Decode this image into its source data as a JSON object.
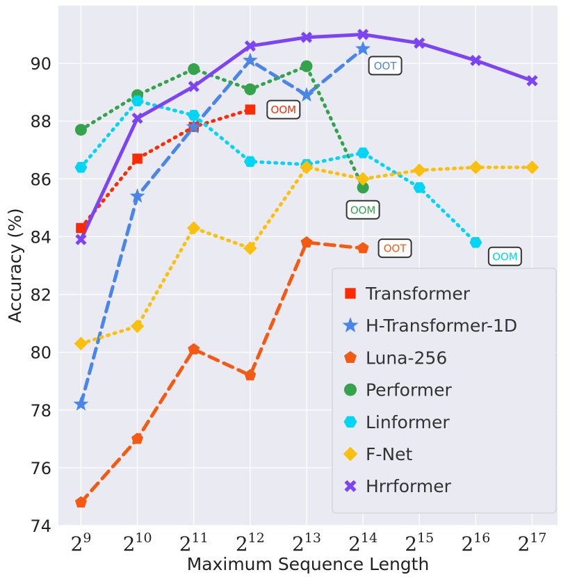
{
  "chart_data": {
    "type": "line",
    "xlabel": "Maximum Sequence Length",
    "ylabel": "Accuracy (%)",
    "x_exponents": [
      9,
      10,
      11,
      12,
      13,
      14,
      15,
      16,
      17
    ],
    "x_tick_base": "2",
    "x_tick_labels": [
      "2^9",
      "2^10",
      "2^11",
      "2^12",
      "2^13",
      "2^14",
      "2^15",
      "2^16",
      "2^17"
    ],
    "ylim": [
      74,
      92
    ],
    "yticks": [
      74,
      76,
      78,
      80,
      82,
      84,
      86,
      88,
      90
    ],
    "grid": true,
    "legend_position": "lower-right",
    "series": [
      {
        "name": "Transformer",
        "color": "#ff2a00",
        "marker": "square",
        "line": "dotted",
        "x": [
          9,
          10,
          11,
          12
        ],
        "y": [
          84.3,
          86.7,
          87.8,
          88.4
        ]
      },
      {
        "name": "H-Transformer-1D",
        "color": "#4a86e8",
        "marker": "star",
        "line": "dashed",
        "x": [
          9,
          10,
          11,
          12,
          13,
          14
        ],
        "y": [
          78.2,
          85.4,
          87.8,
          90.1,
          88.9,
          90.5
        ]
      },
      {
        "name": "Luna-256",
        "color": "#f55a12",
        "marker": "pentagon",
        "line": "dashed",
        "x": [
          9,
          10,
          11,
          12,
          13,
          14
        ],
        "y": [
          74.8,
          77.0,
          80.1,
          79.2,
          83.8,
          83.6
        ]
      },
      {
        "name": "Performer",
        "color": "#34a34b",
        "marker": "circle",
        "line": "dotted",
        "x": [
          9,
          10,
          11,
          12,
          13,
          14
        ],
        "y": [
          87.7,
          88.9,
          89.8,
          89.1,
          89.9,
          85.7
        ]
      },
      {
        "name": "Linformer",
        "color": "#00d5f5",
        "marker": "hexagon",
        "line": "dotted",
        "x": [
          9,
          10,
          11,
          12,
          13,
          14,
          15,
          16
        ],
        "y": [
          86.4,
          88.7,
          88.2,
          86.6,
          86.5,
          86.9,
          85.7,
          83.8
        ]
      },
      {
        "name": "F-Net",
        "color": "#fbbf0d",
        "marker": "diamond",
        "line": "dotted",
        "x": [
          9,
          10,
          11,
          12,
          13,
          14,
          15,
          16,
          17
        ],
        "y": [
          80.3,
          80.9,
          84.3,
          83.6,
          86.4,
          86.0,
          86.3,
          86.4,
          86.4
        ]
      },
      {
        "name": "Hrrformer",
        "color": "#7c44f5",
        "marker": "x",
        "line": "solid",
        "x": [
          9,
          10,
          11,
          12,
          13,
          14,
          15,
          16,
          17
        ],
        "y": [
          83.9,
          88.1,
          89.2,
          90.6,
          90.9,
          91.0,
          90.7,
          90.1,
          89.4
        ]
      }
    ],
    "annotations": [
      {
        "text": "OOM",
        "color": "#ff2a00",
        "near_x": 12,
        "near_y": 88.4
      },
      {
        "text": "OOT",
        "color": "#4a86e8",
        "near_x": 14,
        "near_y": 90.5
      },
      {
        "text": "OOM",
        "color": "#34a34b",
        "near_x": 14,
        "near_y": 85.7
      },
      {
        "text": "OOT",
        "color": "#f55a12",
        "near_x": 14,
        "near_y": 83.6
      },
      {
        "text": "OOM",
        "color": "#00d5f5",
        "near_x": 16,
        "near_y": 83.8
      }
    ]
  }
}
